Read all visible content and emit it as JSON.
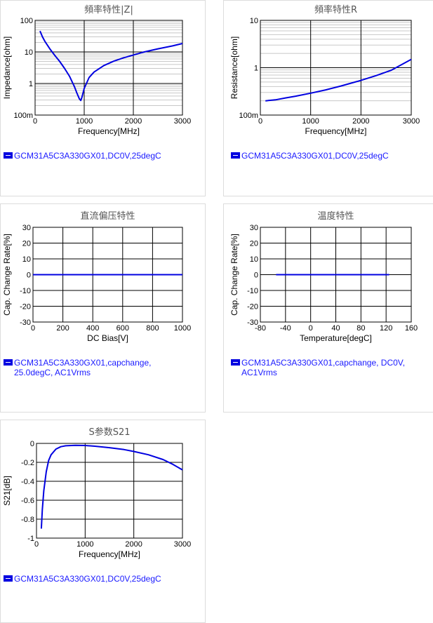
{
  "colors": {
    "series": "#0000e0",
    "grid_major": "#000000",
    "grid_minor": "#c8c8c8",
    "text": "#000000",
    "title": "#555555",
    "legend_text": "#1a1aff"
  },
  "chart_data": [
    {
      "id": "impedance",
      "type": "line",
      "title": "頻率特性|Z|",
      "xlabel": "Frequency[MHz]",
      "ylabel": "Impedance[ohm]",
      "xlim": [
        0,
        3000
      ],
      "ylim": [
        0.1,
        100
      ],
      "yscale": "log",
      "xticks": [
        0,
        1000,
        2000,
        3000
      ],
      "xtick_labels": [
        "0",
        "1000",
        "2000",
        "3000"
      ],
      "yticks": [
        0.1,
        1,
        10,
        100
      ],
      "ytick_labels": [
        "100m",
        "1",
        "10",
        "100"
      ],
      "grid": true,
      "series": [
        {
          "name": "GCM31A5C3A330GX01,DC0V,25degC",
          "x": [
            100,
            150,
            200,
            300,
            400,
            500,
            600,
            700,
            800,
            850,
            900,
            930,
            950,
            1000,
            1100,
            1200,
            1400,
            1600,
            1800,
            2000,
            2200,
            2500,
            2800,
            3000
          ],
          "y": [
            46,
            30,
            21.5,
            12.5,
            7.8,
            5.0,
            3.0,
            1.7,
            0.8,
            0.5,
            0.33,
            0.29,
            0.35,
            0.7,
            1.55,
            2.3,
            3.7,
            5.1,
            6.5,
            8.0,
            9.8,
            12.5,
            15.5,
            18.5
          ]
        }
      ],
      "legend": "GCM31A5C3A330GX01,DC0V,25degC"
    },
    {
      "id": "resistance",
      "type": "line",
      "title": "頻率特性R",
      "xlabel": "Frequency[MHz]",
      "ylabel": "Resistance[ohm]",
      "xlim": [
        0,
        3000
      ],
      "ylim": [
        0.1,
        10
      ],
      "yscale": "log",
      "xticks": [
        0,
        1000,
        2000,
        3000
      ],
      "xtick_labels": [
        "0",
        "1000",
        "2000",
        "3000"
      ],
      "yticks": [
        0.1,
        1,
        10
      ],
      "ytick_labels": [
        "100m",
        "1",
        "10"
      ],
      "grid": true,
      "series": [
        {
          "name": "GCM31A5C3A330GX01,DC0V,25degC",
          "x": [
            100,
            300,
            500,
            700,
            1000,
            1300,
            1600,
            2000,
            2300,
            2600,
            3000
          ],
          "y": [
            0.2,
            0.21,
            0.23,
            0.25,
            0.29,
            0.34,
            0.41,
            0.54,
            0.68,
            0.88,
            1.5
          ]
        }
      ],
      "legend": "GCM31A5C3A330GX01,DC0V,25degC"
    },
    {
      "id": "dcbias",
      "type": "line",
      "title": "直流偏压特性",
      "xlabel": "DC Bias[V]",
      "ylabel": "Cap. Change Rate[%]",
      "xlim": [
        0,
        1000
      ],
      "ylim": [
        -30,
        30
      ],
      "xticks": [
        0,
        200,
        400,
        600,
        800,
        1000
      ],
      "xtick_labels": [
        "0",
        "200",
        "400",
        "600",
        "800",
        "1000"
      ],
      "yticks": [
        -30,
        -20,
        -10,
        0,
        10,
        20,
        30
      ],
      "ytick_labels": [
        "-30",
        "-20",
        "-10",
        "0",
        "10",
        "20",
        "30"
      ],
      "grid": true,
      "series": [
        {
          "name": "GCM31A5C3A330GX01,capchange,\n25.0degC, AC1Vrms",
          "x": [
            0,
            200,
            400,
            600,
            800,
            1000
          ],
          "y": [
            0,
            0,
            0,
            0,
            0,
            0
          ]
        }
      ],
      "legend": "GCM31A5C3A330GX01,capchange,\n25.0degC, AC1Vrms"
    },
    {
      "id": "temperature",
      "type": "line",
      "title": "温度特性",
      "xlabel": "Temperature[degC]",
      "ylabel": "Cap. Change Rate[%]",
      "xlim": [
        -80,
        160
      ],
      "ylim": [
        -30,
        30
      ],
      "xticks": [
        -80,
        -40,
        0,
        40,
        80,
        120,
        160
      ],
      "xtick_labels": [
        "-80",
        "-40",
        "0",
        "40",
        "80",
        "120",
        "160"
      ],
      "yticks": [
        -30,
        -20,
        -10,
        0,
        10,
        20,
        30
      ],
      "ytick_labels": [
        "-30",
        "-20",
        "-10",
        "0",
        "10",
        "20",
        "30"
      ],
      "grid": true,
      "series": [
        {
          "name": "GCM31A5C3A330GX01,capchange, DC0V,\nAC1Vrms",
          "x": [
            -55,
            0,
            25,
            85,
            125
          ],
          "y": [
            0,
            0,
            0,
            0,
            0
          ]
        }
      ],
      "legend": "GCM31A5C3A330GX01,capchange, DC0V,\nAC1Vrms"
    },
    {
      "id": "s21",
      "type": "line",
      "title": "S参数S21",
      "xlabel": "Frequency[MHz]",
      "ylabel": "S21[dB]",
      "xlim": [
        0,
        3000
      ],
      "ylim": [
        -1,
        0
      ],
      "xticks": [
        0,
        1000,
        2000,
        3000
      ],
      "xtick_labels": [
        "0",
        "1000",
        "2000",
        "3000"
      ],
      "yticks": [
        -1,
        -0.8,
        -0.6,
        -0.4,
        -0.2,
        0
      ],
      "ytick_labels": [
        "-1",
        "-0.8",
        "-0.6",
        "-0.4",
        "-0.2",
        "0"
      ],
      "grid": true,
      "series": [
        {
          "name": "GCM31A5C3A330GX01,DC0V,25degC",
          "x": [
            100,
            120,
            150,
            200,
            250,
            300,
            400,
            500,
            600,
            800,
            1000,
            1200,
            1500,
            1800,
            2000,
            2300,
            2600,
            2800,
            3000
          ],
          "y": [
            -0.9,
            -0.7,
            -0.5,
            -0.3,
            -0.18,
            -0.12,
            -0.06,
            -0.035,
            -0.025,
            -0.02,
            -0.022,
            -0.03,
            -0.045,
            -0.065,
            -0.085,
            -0.12,
            -0.17,
            -0.22,
            -0.28
          ]
        }
      ],
      "legend": "GCM31A5C3A330GX01,DC0V,25degC"
    }
  ]
}
